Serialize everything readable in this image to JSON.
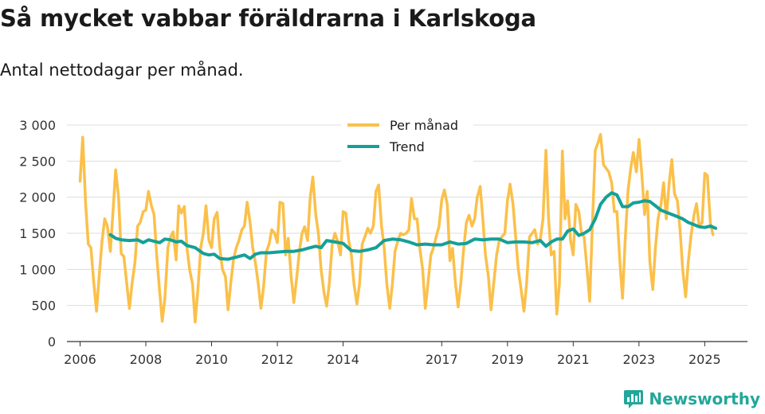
{
  "header": {
    "title": "Så mycket vabbar föräldrarna i Karlskoga",
    "subtitle": "Antal nettodagar per månad."
  },
  "brand": {
    "name": "Newsworthy",
    "color": "#23a79a"
  },
  "chart_data": {
    "type": "line",
    "xlabel": "",
    "ylabel": "",
    "ylim": [
      0,
      3000
    ],
    "yticks": [
      0,
      500,
      1000,
      1500,
      2000,
      2500,
      3000
    ],
    "ytick_labels": [
      "0",
      "500",
      "1 000",
      "1 500",
      "2 000",
      "2 500",
      "3 000"
    ],
    "xlim": [
      2005.6,
      2026.3
    ],
    "xticks": [
      2006,
      2008,
      2010,
      2012,
      2014,
      2017,
      2019,
      2021,
      2023,
      2025
    ],
    "xtick_labels": [
      "2006",
      "2008",
      "2010",
      "2012",
      "2014",
      "2017",
      "2019",
      "2021",
      "2023",
      "2025"
    ],
    "grid": true,
    "legend_position": "top-center",
    "series": [
      {
        "name": "Per månad",
        "color": "#fbc04a",
        "x": [
          2006.0,
          2006.08,
          2006.17,
          2006.25,
          2006.33,
          2006.42,
          2006.5,
          2006.58,
          2006.67,
          2006.75,
          2006.83,
          2006.92,
          2007.0,
          2007.08,
          2007.17,
          2007.25,
          2007.33,
          2007.42,
          2007.5,
          2007.58,
          2007.67,
          2007.75,
          2007.83,
          2007.92,
          2008.0,
          2008.08,
          2008.17,
          2008.25,
          2008.33,
          2008.42,
          2008.5,
          2008.58,
          2008.67,
          2008.75,
          2008.83,
          2008.92,
          2009.0,
          2009.08,
          2009.17,
          2009.25,
          2009.33,
          2009.42,
          2009.5,
          2009.58,
          2009.67,
          2009.75,
          2009.83,
          2009.92,
          2010.0,
          2010.08,
          2010.17,
          2010.25,
          2010.33,
          2010.42,
          2010.5,
          2010.58,
          2010.67,
          2010.75,
          2010.83,
          2010.92,
          2011.0,
          2011.08,
          2011.17,
          2011.25,
          2011.33,
          2011.42,
          2011.5,
          2011.58,
          2011.67,
          2011.75,
          2011.83,
          2011.92,
          2012.0,
          2012.08,
          2012.17,
          2012.25,
          2012.33,
          2012.42,
          2012.5,
          2012.58,
          2012.67,
          2012.75,
          2012.83,
          2012.92,
          2013.0,
          2013.08,
          2013.17,
          2013.25,
          2013.33,
          2013.42,
          2013.5,
          2013.58,
          2013.67,
          2013.75,
          2013.83,
          2013.92,
          2014.0,
          2014.08,
          2014.17,
          2014.25,
          2014.33,
          2014.42,
          2014.5,
          2014.58,
          2014.67,
          2014.75,
          2014.83,
          2014.92,
          2015.0,
          2015.08,
          2015.17,
          2015.25,
          2015.33,
          2015.42,
          2015.5,
          2015.58,
          2015.67,
          2015.75,
          2015.83,
          2015.92,
          2016.0,
          2016.08,
          2016.17,
          2016.25,
          2016.33,
          2016.42,
          2016.5,
          2016.58,
          2016.67,
          2016.75,
          2016.83,
          2016.92,
          2017.0,
          2017.08,
          2017.17,
          2017.25,
          2017.33,
          2017.42,
          2017.5,
          2017.58,
          2017.67,
          2017.75,
          2017.83,
          2017.92,
          2018.0,
          2018.08,
          2018.17,
          2018.25,
          2018.33,
          2018.42,
          2018.5,
          2018.58,
          2018.67,
          2018.75,
          2018.83,
          2018.92,
          2019.0,
          2019.08,
          2019.17,
          2019.25,
          2019.33,
          2019.42,
          2019.5,
          2019.58,
          2019.67,
          2019.75,
          2019.83,
          2019.92,
          2020.0,
          2020.08,
          2020.17,
          2020.25,
          2020.33,
          2020.42,
          2020.5,
          2020.58,
          2020.67,
          2020.75,
          2020.83,
          2020.92,
          2021.0,
          2021.08,
          2021.17,
          2021.25,
          2021.33,
          2021.42,
          2021.5,
          2021.58,
          2021.67,
          2021.75,
          2021.83,
          2021.92,
          2022.0,
          2022.08,
          2022.17,
          2022.25,
          2022.33,
          2022.42,
          2022.5,
          2022.58,
          2022.67,
          2022.75,
          2022.83,
          2022.92,
          2023.0,
          2023.08,
          2023.17,
          2023.25,
          2023.33,
          2023.42,
          2023.5,
          2023.58,
          2023.67,
          2023.75,
          2023.83,
          2023.92,
          2024.0,
          2024.08,
          2024.17,
          2024.25,
          2024.33,
          2024.42,
          2024.5,
          2024.58,
          2024.67,
          2024.75,
          2024.83,
          2024.92,
          2025.0,
          2025.08,
          2025.17,
          2025.25
        ],
        "values": [
          2220,
          2830,
          1900,
          1350,
          1300,
          800,
          420,
          900,
          1400,
          1700,
          1600,
          1250,
          1800,
          2380,
          2000,
          1220,
          1180,
          800,
          460,
          800,
          1100,
          1600,
          1650,
          1800,
          1820,
          2080,
          1880,
          1760,
          1200,
          700,
          280,
          600,
          1300,
          1450,
          1520,
          1130,
          1880,
          1780,
          1870,
          1300,
          1000,
          800,
          270,
          700,
          1300,
          1500,
          1880,
          1400,
          1300,
          1700,
          1790,
          1300,
          1000,
          900,
          440,
          800,
          1150,
          1300,
          1400,
          1550,
          1600,
          1930,
          1650,
          1300,
          1100,
          800,
          460,
          750,
          1250,
          1350,
          1550,
          1500,
          1370,
          1930,
          1910,
          1200,
          1430,
          900,
          540,
          850,
          1250,
          1500,
          1590,
          1400,
          2000,
          2280,
          1750,
          1500,
          1000,
          680,
          490,
          800,
          1350,
          1500,
          1400,
          1200,
          1800,
          1780,
          1400,
          1200,
          800,
          520,
          800,
          1350,
          1460,
          1570,
          1500,
          1600,
          2080,
          2170,
          1600,
          1300,
          800,
          460,
          800,
          1250,
          1400,
          1500,
          1480,
          1500,
          1550,
          1980,
          1700,
          1700,
          1300,
          1000,
          460,
          800,
          1200,
          1300,
          1450,
          1600,
          1960,
          2100,
          1900,
          1120,
          1290,
          800,
          480,
          800,
          1300,
          1650,
          1750,
          1600,
          1700,
          2000,
          2150,
          1700,
          1200,
          900,
          440,
          800,
          1200,
          1400,
          1450,
          1500,
          1950,
          2180,
          1900,
          1450,
          1000,
          700,
          420,
          800,
          1450,
          1500,
          1550,
          1350,
          1420,
          1700,
          2650,
          1700,
          1200,
          1250,
          380,
          800,
          2640,
          1700,
          1950,
          1400,
          1200,
          1900,
          1800,
          1500,
          1450,
          1000,
          560,
          1600,
          2650,
          2750,
          2870,
          2450,
          2400,
          2350,
          2200,
          1800,
          1800,
          1100,
          600,
          1400,
          2100,
          2400,
          2620,
          2350,
          2800,
          2350,
          1760,
          2080,
          1100,
          720,
          1300,
          1700,
          1900,
          2200,
          1700,
          2200,
          2520,
          2050,
          1950,
          1550,
          1000,
          620,
          1100,
          1450,
          1750,
          1910,
          1600,
          1650,
          2330,
          2300,
          1650,
          1480
        ]
      },
      {
        "name": "Trend",
        "color": "#15a097",
        "x": [
          2006.92,
          2007.08,
          2007.25,
          2007.5,
          2007.75,
          2007.92,
          2008.08,
          2008.25,
          2008.42,
          2008.58,
          2008.75,
          2008.92,
          2009.08,
          2009.25,
          2009.5,
          2009.75,
          2009.92,
          2010.08,
          2010.25,
          2010.5,
          2010.75,
          2011.0,
          2011.17,
          2011.33,
          2011.5,
          2011.75,
          2012.0,
          2012.25,
          2012.5,
          2012.75,
          2013.0,
          2013.17,
          2013.33,
          2013.5,
          2013.75,
          2014.0,
          2014.25,
          2014.5,
          2014.75,
          2015.0,
          2015.25,
          2015.5,
          2015.75,
          2016.0,
          2016.25,
          2016.5,
          2016.75,
          2017.0,
          2017.25,
          2017.5,
          2017.75,
          2018.0,
          2018.25,
          2018.5,
          2018.75,
          2019.0,
          2019.25,
          2019.5,
          2019.75,
          2020.0,
          2020.17,
          2020.33,
          2020.5,
          2020.67,
          2020.83,
          2021.0,
          2021.17,
          2021.33,
          2021.5,
          2021.67,
          2021.83,
          2022.0,
          2022.17,
          2022.33,
          2022.5,
          2022.67,
          2022.83,
          2023.0,
          2023.17,
          2023.33,
          2023.5,
          2023.67,
          2023.83,
          2024.0,
          2024.17,
          2024.33,
          2024.5,
          2024.67,
          2024.83,
          2025.0,
          2025.17,
          2025.33
        ],
        "values": [
          1480,
          1430,
          1410,
          1400,
          1410,
          1370,
          1410,
          1390,
          1370,
          1420,
          1410,
          1380,
          1390,
          1330,
          1300,
          1220,
          1200,
          1210,
          1150,
          1140,
          1170,
          1200,
          1150,
          1210,
          1230,
          1230,
          1240,
          1250,
          1250,
          1270,
          1300,
          1320,
          1300,
          1400,
          1380,
          1360,
          1260,
          1250,
          1270,
          1300,
          1400,
          1420,
          1410,
          1380,
          1340,
          1350,
          1340,
          1340,
          1380,
          1350,
          1360,
          1420,
          1410,
          1420,
          1420,
          1370,
          1380,
          1380,
          1370,
          1400,
          1320,
          1380,
          1420,
          1420,
          1530,
          1560,
          1470,
          1500,
          1550,
          1700,
          1900,
          2000,
          2060,
          2030,
          1870,
          1870,
          1920,
          1930,
          1950,
          1940,
          1880,
          1820,
          1790,
          1760,
          1730,
          1700,
          1650,
          1620,
          1590,
          1580,
          1600,
          1570
        ]
      }
    ]
  }
}
